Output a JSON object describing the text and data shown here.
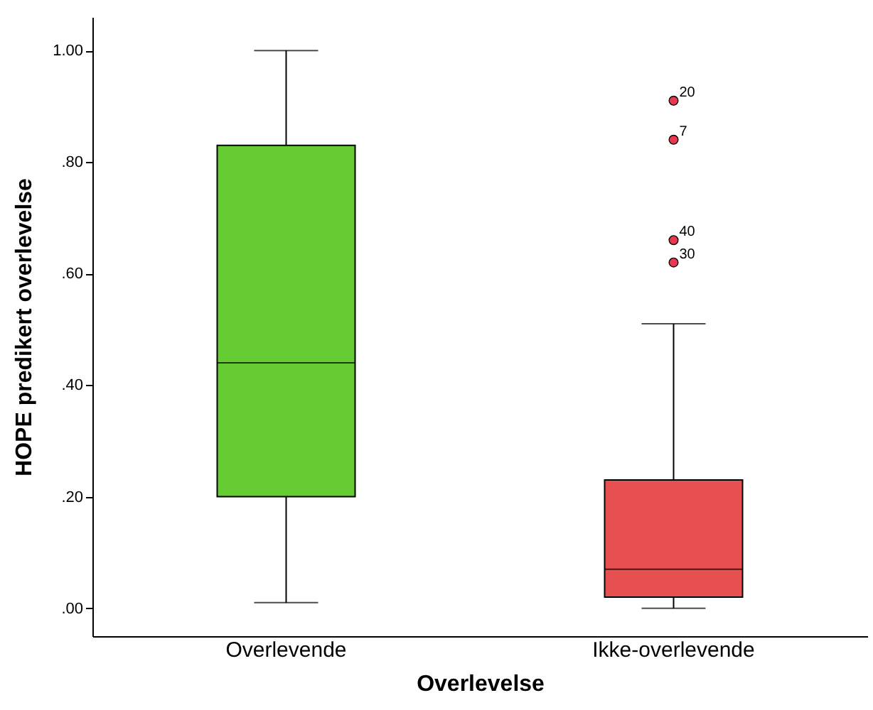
{
  "chart_data": {
    "type": "box",
    "xlabel": "Overlevelse",
    "ylabel": "HOPE predikert overlevelse",
    "categories": [
      "Overlevende",
      "Ikke-overlevende"
    ],
    "colors": [
      "#66cc33",
      "#e65050"
    ],
    "boxes": [
      {
        "low": 0.01,
        "q1": 0.2,
        "median": 0.44,
        "q3": 0.83,
        "high": 1.0
      },
      {
        "low": 0.0,
        "q1": 0.02,
        "median": 0.07,
        "q3": 0.23,
        "high": 0.51,
        "outliers": [
          0.91,
          0.84,
          0.66,
          0.62
        ]
      }
    ],
    "ylim": [
      -0.05,
      1.06
    ],
    "yticks": [
      {
        "value": 0,
        "label": ".00"
      },
      {
        "value": 0.2,
        "label": ".20"
      },
      {
        "value": 0.4,
        "label": ".40"
      },
      {
        "value": 0.6,
        "label": ".60"
      },
      {
        "value": 0.8,
        "label": ".80"
      },
      {
        "value": 1.0,
        "label": "1.00"
      }
    ],
    "annotations": [
      "20",
      "7",
      "40",
      "30"
    ]
  }
}
